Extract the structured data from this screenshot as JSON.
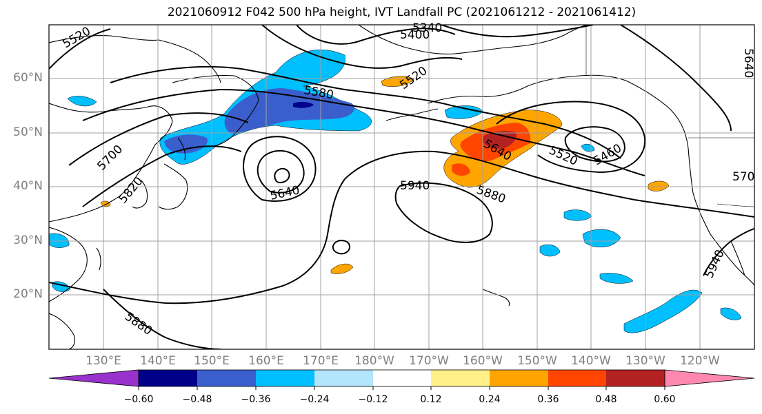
{
  "title": "2021060912 F042 500 hPa height, IVT Landfall PC (2021061212 - 2021061412)",
  "lat_labels": [
    "60°N",
    "50°N",
    "40°N",
    "30°N",
    "20°N"
  ],
  "lon_labels": [
    "130°E",
    "140°E",
    "150°E",
    "160°E",
    "170°E",
    "180°W",
    "170°W",
    "160°W",
    "150°W",
    "140°W",
    "130°W",
    "120°W"
  ],
  "contour_labels": [
    "5520",
    "5400",
    "5340",
    "5580",
    "5520",
    "5700",
    "5820",
    "5640",
    "5940",
    "5640",
    "5880",
    "5520",
    "5460",
    "5880",
    "5940",
    "5640",
    "570"
  ],
  "colorbar": {
    "ticks": [
      "−0.60",
      "−0.48",
      "−0.36",
      "−0.24",
      "−0.12",
      "0.12",
      "0.24",
      "0.36",
      "0.48",
      "0.60"
    ],
    "colors": [
      "#9932cc",
      "#00008b",
      "#3a5fcd",
      "#00bfff",
      "#b3e5fc",
      "#ffffff",
      "#fff08a",
      "#ffa500",
      "#ff4500",
      "#b22222",
      "#ff88b0"
    ]
  },
  "colors": {
    "negative_strong": "#3a5fcd",
    "negative": "#00bfff",
    "negative_darkest": "#00008b",
    "positive_weak": "#ffa500",
    "positive": "#ff4500",
    "positive_strong": "#b22222",
    "grid": "#a0a0a0"
  }
}
